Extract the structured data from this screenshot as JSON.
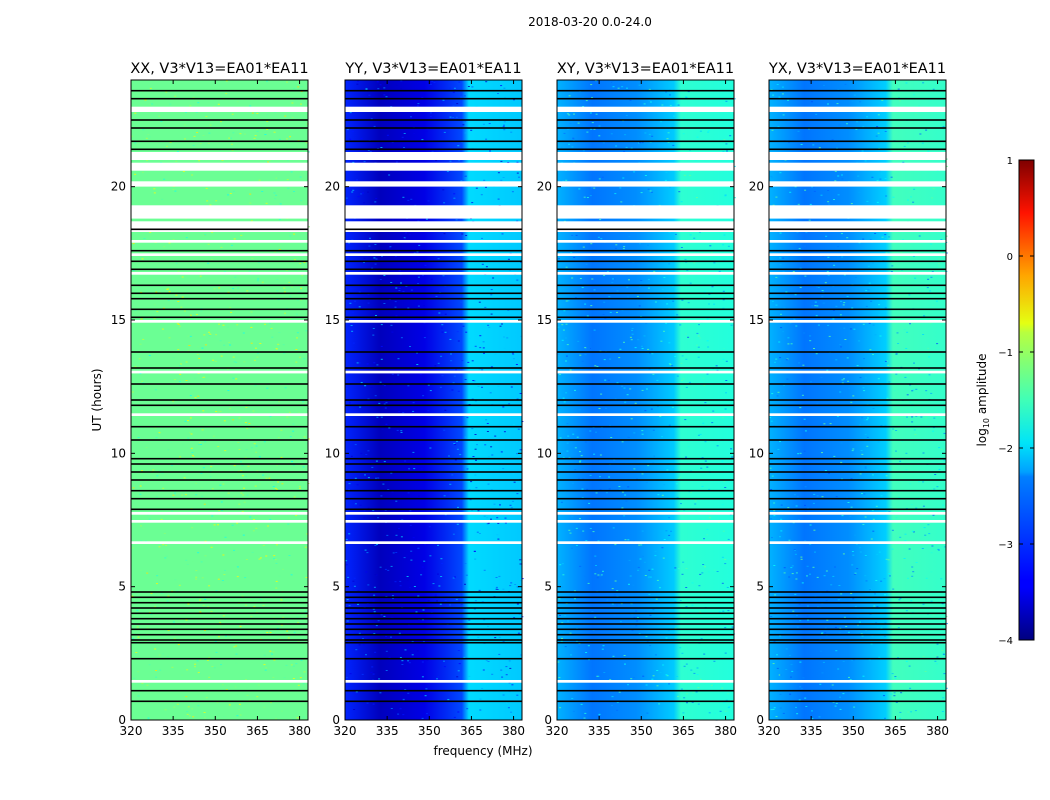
{
  "figure": {
    "suptitle": "2018-03-20 0.0-24.0"
  },
  "chart_data": {
    "type": "heatmap",
    "title": "2018-03-20 0.0-24.0",
    "xlabel": "frequency (MHz)",
    "ylabel": "UT (hours)",
    "xlim": [
      320,
      383
    ],
    "ylim": [
      0,
      24
    ],
    "xticks": [
      320,
      335,
      350,
      365,
      380
    ],
    "yticks": [
      0,
      5,
      10,
      15,
      20
    ],
    "panels": [
      {
        "title": "XX, V3*V13=EA01*EA11",
        "base_level": -1.6,
        "low_band_dip": 0.0,
        "high_band_boost": 0.0
      },
      {
        "title": "YY, V3*V13=EA01*EA11",
        "base_level": -3.2,
        "low_band_dip": -0.5,
        "high_band_boost": 0.9
      },
      {
        "title": "XY, V3*V13=EA01*EA11",
        "base_level": -2.5,
        "low_band_dip": -0.3,
        "high_band_boost": 0.6
      },
      {
        "title": "YX, V3*V13=EA01*EA11",
        "base_level": -2.5,
        "low_band_dip": -0.3,
        "high_band_boost": 0.7
      }
    ],
    "flagged_black_hours": [
      0.7,
      1.1,
      2.3,
      2.9,
      3.0,
      3.2,
      3.4,
      3.6,
      3.8,
      4.0,
      4.2,
      4.4,
      4.6,
      4.8,
      7.9,
      8.3,
      8.6,
      9.0,
      9.3,
      9.6,
      9.8,
      10.5,
      11.0,
      11.8,
      12.0,
      12.6,
      13.2,
      13.8,
      15.1,
      15.4,
      15.8,
      16.0,
      16.3,
      16.9,
      17.2,
      17.6,
      18.4,
      21.4,
      21.7,
      22.2,
      22.5,
      23.3,
      23.6
    ],
    "missing_white_ranges": [
      [
        1.4,
        1.5
      ],
      [
        6.6,
        6.7
      ],
      [
        7.4,
        7.5
      ],
      [
        7.7,
        7.8
      ],
      [
        11.4,
        11.5
      ],
      [
        13.0,
        13.1
      ],
      [
        14.9,
        15.0
      ],
      [
        16.7,
        16.8
      ],
      [
        17.4,
        17.5
      ],
      [
        17.9,
        18.0
      ],
      [
        18.3,
        18.7
      ],
      [
        18.8,
        19.3
      ],
      [
        20.0,
        20.2
      ],
      [
        20.6,
        20.9
      ],
      [
        21.0,
        21.3
      ],
      [
        22.8,
        23.0
      ]
    ],
    "colorbar": {
      "label": "log₁₀ amplitude",
      "label_base": "log",
      "label_sub": "10",
      "label_rest": " amplitude",
      "range": [
        -4,
        1
      ],
      "ticks": [
        "1",
        "0",
        "−1",
        "−2",
        "−3",
        "−4"
      ],
      "tick_values": [
        1,
        0,
        -1,
        -2,
        -3,
        -4
      ],
      "colormap": "jet"
    }
  }
}
